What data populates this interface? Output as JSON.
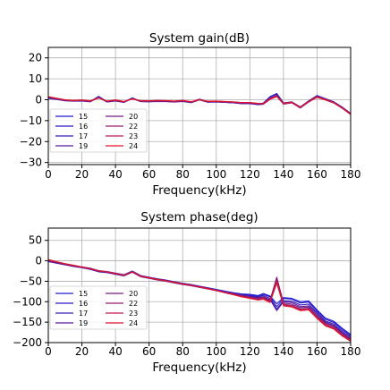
{
  "chart_data": [
    {
      "type": "line",
      "title": "System gain(dB)",
      "xlabel": "Frequency(kHz)",
      "ylabel": "",
      "xlim": [
        0,
        180
      ],
      "ylim": [
        -31,
        25
      ],
      "xticks": [
        0,
        20,
        40,
        60,
        80,
        100,
        120,
        140,
        160,
        180
      ],
      "yticks": [
        -30,
        -20,
        -10,
        0,
        10,
        20
      ],
      "grid": true,
      "legend_position": "lower-left",
      "x": [
        0,
        5,
        10,
        15,
        20,
        25,
        30,
        35,
        40,
        45,
        50,
        55,
        60,
        65,
        70,
        75,
        80,
        85,
        90,
        95,
        100,
        105,
        110,
        115,
        120,
        125,
        128,
        132,
        136,
        140,
        145,
        150,
        155,
        160,
        165,
        170,
        175,
        180
      ],
      "series": [
        {
          "name": "15",
          "color": "#1f1fd6",
          "values": [
            1.0,
            0.4,
            -0.3,
            -0.6,
            -0.4,
            -0.8,
            1.6,
            -0.9,
            -0.4,
            -1.1,
            0.9,
            -0.7,
            -0.8,
            -0.6,
            -0.7,
            -0.9,
            -0.6,
            -1.2,
            0.3,
            -1.0,
            -0.9,
            -1.1,
            -1.3,
            -1.6,
            -1.6,
            -2.0,
            -1.6,
            1.5,
            3.0,
            -1.5,
            -1.0,
            -3.5,
            -0.5,
            2.0,
            0.5,
            -1.0,
            -3.5,
            -6.5
          ]
        },
        {
          "name": "16",
          "color": "#2a18c8",
          "values": [
            0.8,
            0.3,
            -0.4,
            -0.6,
            -0.5,
            -0.9,
            1.4,
            -1.0,
            -0.5,
            -1.2,
            0.7,
            -0.8,
            -0.9,
            -0.7,
            -0.8,
            -1.0,
            -0.7,
            -1.3,
            0.1,
            -1.1,
            -1.0,
            -1.2,
            -1.4,
            -1.7,
            -1.7,
            -2.2,
            -1.8,
            1.3,
            2.8,
            -1.7,
            -1.2,
            -3.7,
            -0.7,
            1.8,
            0.3,
            -1.2,
            -3.7,
            -6.7
          ]
        },
        {
          "name": "17",
          "color": "#3a1ab8",
          "values": [
            0.7,
            0.2,
            -0.4,
            -0.7,
            -0.5,
            -0.9,
            1.2,
            -1.0,
            -0.5,
            -1.2,
            0.6,
            -0.8,
            -0.9,
            -0.7,
            -0.8,
            -1.0,
            -0.7,
            -1.3,
            0.0,
            -1.1,
            -1.0,
            -1.2,
            -1.4,
            -1.8,
            -1.8,
            -2.2,
            -2.0,
            0.5,
            2.0,
            -1.9,
            -1.3,
            -3.8,
            -0.9,
            1.5,
            0.1,
            -1.4,
            -3.9,
            -6.9
          ]
        },
        {
          "name": "19",
          "color": "#5a1aa0",
          "values": [
            0.6,
            0.1,
            -0.5,
            -0.7,
            -0.6,
            -1.0,
            1.0,
            -1.1,
            -0.6,
            -1.3,
            0.5,
            -0.9,
            -1.0,
            -0.8,
            -0.9,
            -1.1,
            -0.8,
            -1.4,
            -0.1,
            -1.2,
            -1.1,
            -1.3,
            -1.5,
            -1.9,
            -1.9,
            -2.4,
            -2.2,
            0.2,
            1.6,
            -2.1,
            -1.5,
            -4.0,
            -1.1,
            1.2,
            -0.1,
            -1.6,
            -4.1,
            -7.1
          ]
        },
        {
          "name": "20",
          "color": "#761a86",
          "values": [
            1.2,
            0.5,
            -0.2,
            -0.5,
            -0.3,
            -0.7,
            1.1,
            -0.8,
            -0.3,
            -1.0,
            0.6,
            -0.6,
            -0.7,
            -0.5,
            -0.6,
            -0.8,
            -0.5,
            -1.1,
            0.2,
            -0.9,
            -0.8,
            -1.0,
            -1.2,
            -1.5,
            -1.5,
            -1.9,
            -1.7,
            0.8,
            2.2,
            -1.6,
            -1.1,
            -3.4,
            -0.6,
            1.7,
            0.4,
            -1.1,
            -3.6,
            -6.6
          ]
        },
        {
          "name": "22",
          "color": "#9a1a68",
          "values": [
            1.3,
            0.6,
            -0.2,
            -0.5,
            -0.3,
            -0.7,
            1.0,
            -0.8,
            -0.3,
            -1.0,
            0.5,
            -0.6,
            -0.7,
            -0.5,
            -0.6,
            -0.8,
            -0.5,
            -1.1,
            0.1,
            -0.9,
            -0.8,
            -1.0,
            -1.2,
            -1.5,
            -1.5,
            -1.9,
            -1.8,
            0.6,
            1.9,
            -1.7,
            -1.2,
            -3.5,
            -0.8,
            1.5,
            0.2,
            -1.3,
            -3.8,
            -6.8
          ]
        },
        {
          "name": "23",
          "color": "#c01a4a",
          "values": [
            1.4,
            0.6,
            -0.1,
            -0.4,
            -0.2,
            -0.6,
            0.9,
            -0.7,
            -0.2,
            -0.9,
            0.4,
            -0.5,
            -0.6,
            -0.4,
            -0.5,
            -0.7,
            -0.4,
            -1.0,
            0.0,
            -0.8,
            -0.7,
            -0.9,
            -1.1,
            -1.4,
            -1.4,
            -1.8,
            -1.9,
            0.4,
            1.7,
            -1.8,
            -1.3,
            -3.6,
            -0.9,
            1.3,
            0.1,
            -1.4,
            -3.9,
            -6.9
          ]
        },
        {
          "name": "24",
          "color": "#e0142c",
          "values": [
            1.5,
            0.7,
            0.0,
            -0.3,
            -0.1,
            -0.5,
            0.8,
            -0.6,
            -0.1,
            -0.8,
            0.3,
            -0.4,
            -0.5,
            -0.3,
            -0.4,
            -0.6,
            -0.3,
            -0.9,
            -0.1,
            -0.7,
            -0.6,
            -0.8,
            -1.0,
            -1.3,
            -1.3,
            -1.7,
            -2.0,
            0.2,
            1.5,
            -1.9,
            -1.4,
            -3.7,
            -1.0,
            1.1,
            -0.1,
            -1.5,
            -4.0,
            -7.0
          ]
        }
      ]
    },
    {
      "type": "line",
      "title": "System phase(deg)",
      "xlabel": "Frequency(kHz)",
      "ylabel": "",
      "xlim": [
        0,
        180
      ],
      "ylim": [
        -200,
        80
      ],
      "xticks": [
        0,
        20,
        40,
        60,
        80,
        100,
        120,
        140,
        160,
        180
      ],
      "yticks": [
        -200,
        -150,
        -100,
        -50,
        0,
        50
      ],
      "grid": true,
      "legend_position": "lower-left",
      "x": [
        0,
        5,
        10,
        15,
        20,
        25,
        30,
        35,
        40,
        45,
        50,
        55,
        60,
        65,
        70,
        75,
        80,
        85,
        90,
        95,
        100,
        105,
        110,
        115,
        120,
        125,
        128,
        132,
        136,
        140,
        145,
        150,
        155,
        160,
        165,
        170,
        175,
        180
      ],
      "series": [
        {
          "name": "15",
          "color": "#1f1fd6",
          "values": [
            0,
            -4,
            -8,
            -12,
            -15,
            -18,
            -24,
            -26,
            -30,
            -34,
            -25,
            -36,
            -40,
            -44,
            -47,
            -51,
            -55,
            -58,
            -62,
            -66,
            -70,
            -74,
            -78,
            -81,
            -82,
            -85,
            -80,
            -86,
            -105,
            -90,
            -92,
            -100,
            -98,
            -120,
            -140,
            -148,
            -165,
            -180
          ]
        },
        {
          "name": "16",
          "color": "#2a18c8",
          "values": [
            -1,
            -5,
            -9,
            -13,
            -16,
            -19,
            -25,
            -27,
            -31,
            -35,
            -26,
            -37,
            -41,
            -45,
            -48,
            -52,
            -56,
            -59,
            -63,
            -67,
            -71,
            -75,
            -79,
            -82,
            -84,
            -87,
            -82,
            -88,
            -112,
            -92,
            -94,
            -103,
            -101,
            -123,
            -143,
            -151,
            -168,
            -183
          ]
        },
        {
          "name": "17",
          "color": "#3a1ab8",
          "values": [
            -1,
            -5,
            -9,
            -13,
            -16,
            -20,
            -26,
            -28,
            -32,
            -36,
            -27,
            -38,
            -42,
            -46,
            -49,
            -53,
            -57,
            -60,
            -64,
            -68,
            -72,
            -76,
            -80,
            -84,
            -86,
            -89,
            -85,
            -92,
            -118,
            -97,
            -99,
            -108,
            -106,
            -127,
            -147,
            -155,
            -172,
            -186
          ]
        },
        {
          "name": "19",
          "color": "#5a1aa0",
          "values": [
            -2,
            -6,
            -10,
            -14,
            -17,
            -21,
            -27,
            -29,
            -33,
            -37,
            -28,
            -39,
            -43,
            -47,
            -50,
            -54,
            -58,
            -61,
            -65,
            -69,
            -73,
            -77,
            -81,
            -85,
            -88,
            -91,
            -88,
            -95,
            -122,
            -100,
            -102,
            -112,
            -110,
            -130,
            -150,
            -158,
            -175,
            -189
          ]
        },
        {
          "name": "20",
          "color": "#761a86",
          "values": [
            0,
            -4,
            -8,
            -12,
            -15,
            -19,
            -25,
            -27,
            -31,
            -35,
            -26,
            -37,
            -41,
            -45,
            -48,
            -52,
            -56,
            -59,
            -63,
            -67,
            -71,
            -76,
            -80,
            -84,
            -88,
            -91,
            -88,
            -96,
            -40,
            -103,
            -106,
            -115,
            -113,
            -134,
            -152,
            -160,
            -177,
            -191
          ]
        },
        {
          "name": "22",
          "color": "#9a1a68",
          "values": [
            1,
            -3,
            -8,
            -12,
            -15,
            -19,
            -25,
            -27,
            -31,
            -35,
            -26,
            -37,
            -41,
            -45,
            -48,
            -52,
            -56,
            -59,
            -63,
            -67,
            -72,
            -77,
            -81,
            -86,
            -90,
            -93,
            -90,
            -98,
            -45,
            -106,
            -109,
            -118,
            -116,
            -137,
            -155,
            -163,
            -180,
            -193
          ]
        },
        {
          "name": "23",
          "color": "#c01a4a",
          "values": [
            2,
            -3,
            -7,
            -11,
            -15,
            -19,
            -25,
            -27,
            -31,
            -35,
            -27,
            -38,
            -42,
            -46,
            -49,
            -53,
            -57,
            -60,
            -64,
            -68,
            -73,
            -78,
            -82,
            -87,
            -91,
            -95,
            -92,
            -100,
            -50,
            -108,
            -111,
            -120,
            -118,
            -139,
            -157,
            -165,
            -182,
            -195
          ]
        },
        {
          "name": "24",
          "color": "#e0142c",
          "values": [
            3,
            -2,
            -7,
            -11,
            -15,
            -19,
            -24,
            -27,
            -31,
            -35,
            -27,
            -38,
            -42,
            -46,
            -49,
            -53,
            -57,
            -60,
            -64,
            -68,
            -73,
            -78,
            -83,
            -88,
            -92,
            -96,
            -94,
            -102,
            -55,
            -110,
            -113,
            -122,
            -120,
            -141,
            -159,
            -167,
            -184,
            -197
          ]
        }
      ]
    }
  ]
}
